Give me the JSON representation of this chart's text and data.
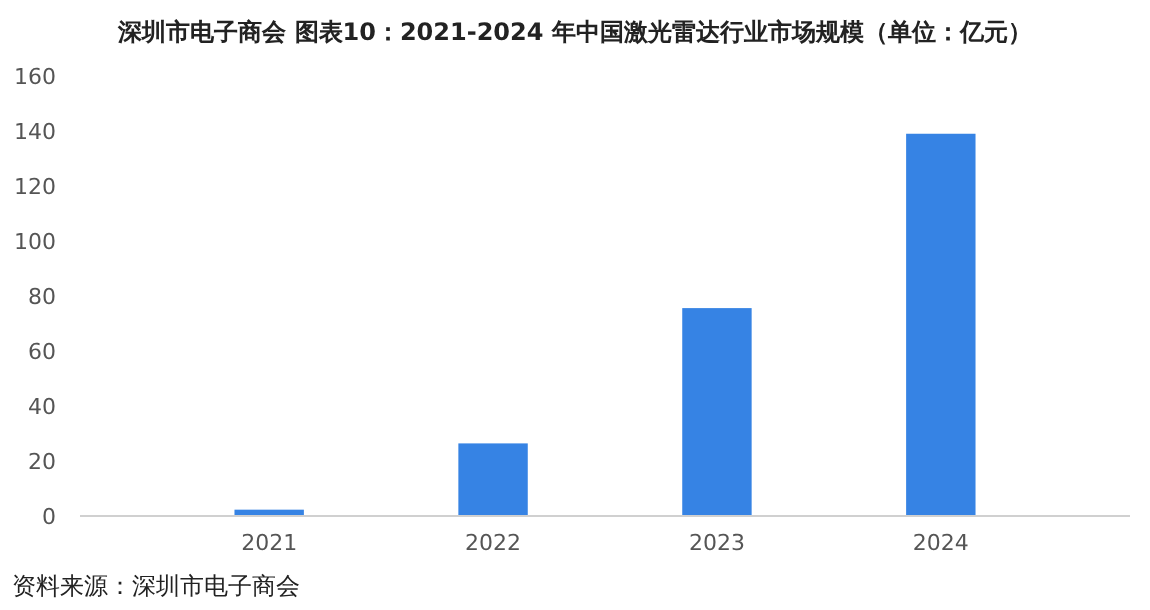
{
  "chart_data": {
    "type": "bar",
    "title": "深圳市电子商会  图表10：2021-2024 年中国激光雷达行业市场规模（单位：亿元）",
    "categories": [
      "2021",
      "2022",
      "2023",
      "2024"
    ],
    "values": [
      2.3,
      26.4,
      75.6,
      139
    ],
    "color": "#3683e4",
    "ylim": [
      0,
      160
    ],
    "yticks": [
      0,
      20,
      40,
      60,
      80,
      100,
      120,
      140,
      160
    ],
    "grid": false,
    "annotations": [
      "资料来源：深圳市电子商会"
    ]
  }
}
